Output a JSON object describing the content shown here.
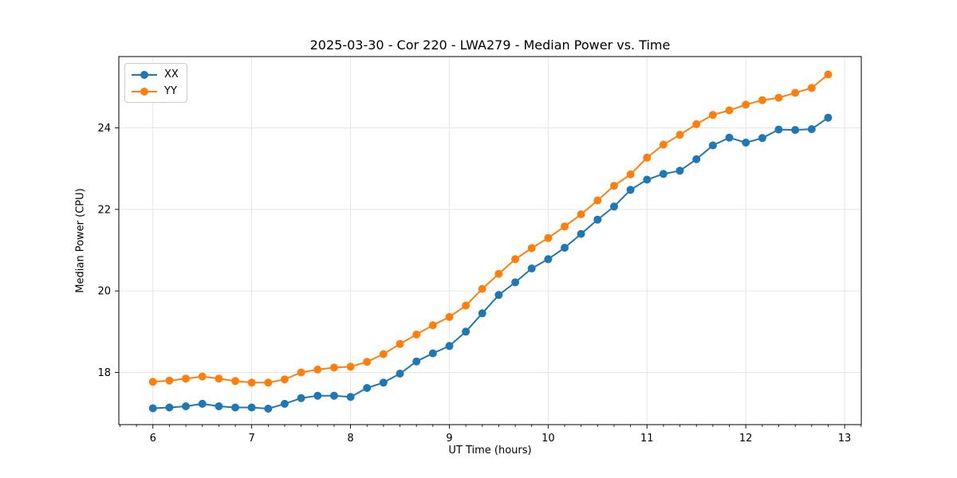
{
  "chart_data": {
    "type": "line",
    "title": "2025-03-30 - Cor 220 - LWA279 - Median Power vs. Time",
    "xlabel": "UT Time (hours)",
    "ylabel": "Median Power (CPU)",
    "xlim": [
      5.655,
      13.169
    ],
    "ylim": [
      16.72,
      25.75
    ],
    "x_major_ticks": [
      6,
      7,
      8,
      9,
      10,
      11,
      12,
      13
    ],
    "x_minor_step": 0.16667,
    "y_major_ticks": [
      18,
      20,
      22,
      24
    ],
    "grid": true,
    "legend_position": "upper-left",
    "marker": "circle",
    "x": [
      6.0,
      6.167,
      6.333,
      6.5,
      6.667,
      6.833,
      7.0,
      7.167,
      7.333,
      7.5,
      7.667,
      7.833,
      8.0,
      8.167,
      8.333,
      8.5,
      8.667,
      8.833,
      9.0,
      9.167,
      9.333,
      9.5,
      9.667,
      9.833,
      10.0,
      10.167,
      10.333,
      10.5,
      10.667,
      10.833,
      11.0,
      11.167,
      11.333,
      11.5,
      11.667,
      11.833,
      12.0,
      12.167,
      12.333,
      12.5,
      12.667,
      12.833
    ],
    "series": [
      {
        "name": "XX",
        "color": "#1f77b4",
        "values": [
          17.12,
          17.14,
          17.17,
          17.23,
          17.17,
          17.14,
          17.14,
          17.11,
          17.23,
          17.37,
          17.43,
          17.43,
          17.4,
          17.62,
          17.75,
          17.97,
          18.27,
          18.47,
          18.65,
          19.0,
          19.45,
          19.9,
          20.21,
          20.55,
          20.78,
          21.06,
          21.4,
          21.75,
          22.07,
          22.48,
          22.73,
          22.87,
          22.95,
          23.23,
          23.57,
          23.76,
          23.64,
          23.75,
          23.96,
          23.95,
          23.97,
          24.25
        ]
      },
      {
        "name": "YY",
        "color": "#ff7f0e",
        "values": [
          17.77,
          17.8,
          17.85,
          17.9,
          17.85,
          17.79,
          17.75,
          17.75,
          17.83,
          18.0,
          18.07,
          18.12,
          18.14,
          18.26,
          18.45,
          18.7,
          18.93,
          19.16,
          19.36,
          19.64,
          20.05,
          20.42,
          20.78,
          21.05,
          21.3,
          21.58,
          21.88,
          22.22,
          22.58,
          22.86,
          23.27,
          23.59,
          23.83,
          24.09,
          24.32,
          24.43,
          24.57,
          24.68,
          24.74,
          24.86,
          24.98,
          25.31
        ]
      }
    ]
  }
}
